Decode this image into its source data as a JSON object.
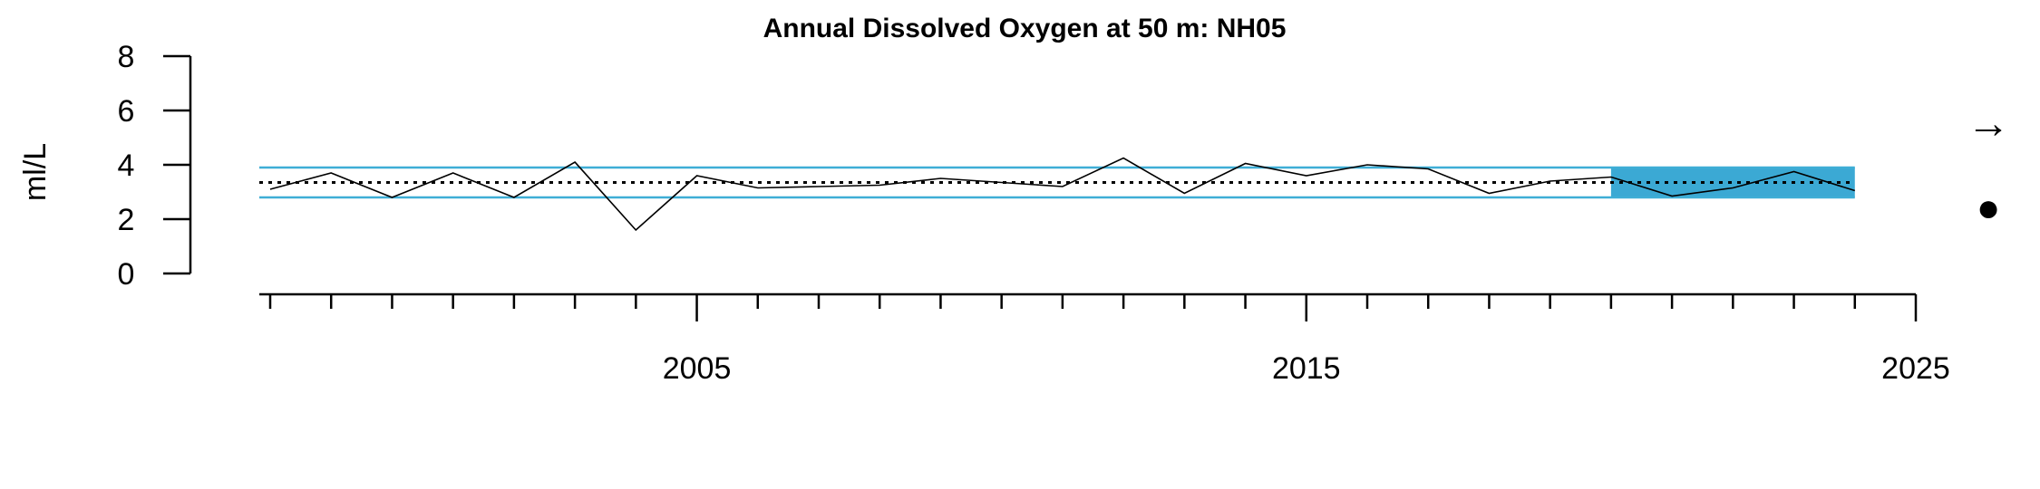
{
  "chart_data": {
    "type": "line",
    "title": "Annual Dissolved Oxygen at 50 m: NH05",
    "xlabel": "",
    "ylabel": "ml/L",
    "xlim": [
      1998,
      2025
    ],
    "ylim": [
      0,
      8
    ],
    "x_tick_labels": [
      "2005",
      "2015",
      "2025"
    ],
    "y_tick_labels": [
      "0",
      "2",
      "4",
      "6",
      "8"
    ],
    "grid": false,
    "series": [
      {
        "x": [
          1998,
          1999,
          2000,
          2001,
          2002,
          2003,
          2004,
          2005,
          2006,
          2007,
          2008,
          2009,
          2010,
          2011,
          2012,
          2013,
          2014,
          2015,
          2016,
          2017,
          2018,
          2019,
          2020,
          2021,
          2022,
          2023,
          2024
        ],
        "values": [
          3.1,
          3.7,
          2.8,
          3.7,
          2.8,
          4.1,
          1.6,
          3.6,
          3.15,
          3.2,
          3.25,
          3.5,
          3.35,
          3.2,
          4.25,
          2.95,
          4.05,
          3.6,
          4.0,
          3.85,
          2.95,
          3.4,
          3.55,
          2.85,
          3.15,
          3.75,
          3.05
        ]
      }
    ],
    "mean": 3.35,
    "sd_upper": 3.9,
    "sd_lower": 2.8,
    "highlight_x_range": [
      2020,
      2024
    ],
    "colors": {
      "sd_line": "#3eaed6",
      "highlight_fill": "#3ba9d4",
      "series_line": "#000000",
      "mean_line": "#000000"
    },
    "trend_symbol": "→",
    "status_symbol": "●"
  }
}
